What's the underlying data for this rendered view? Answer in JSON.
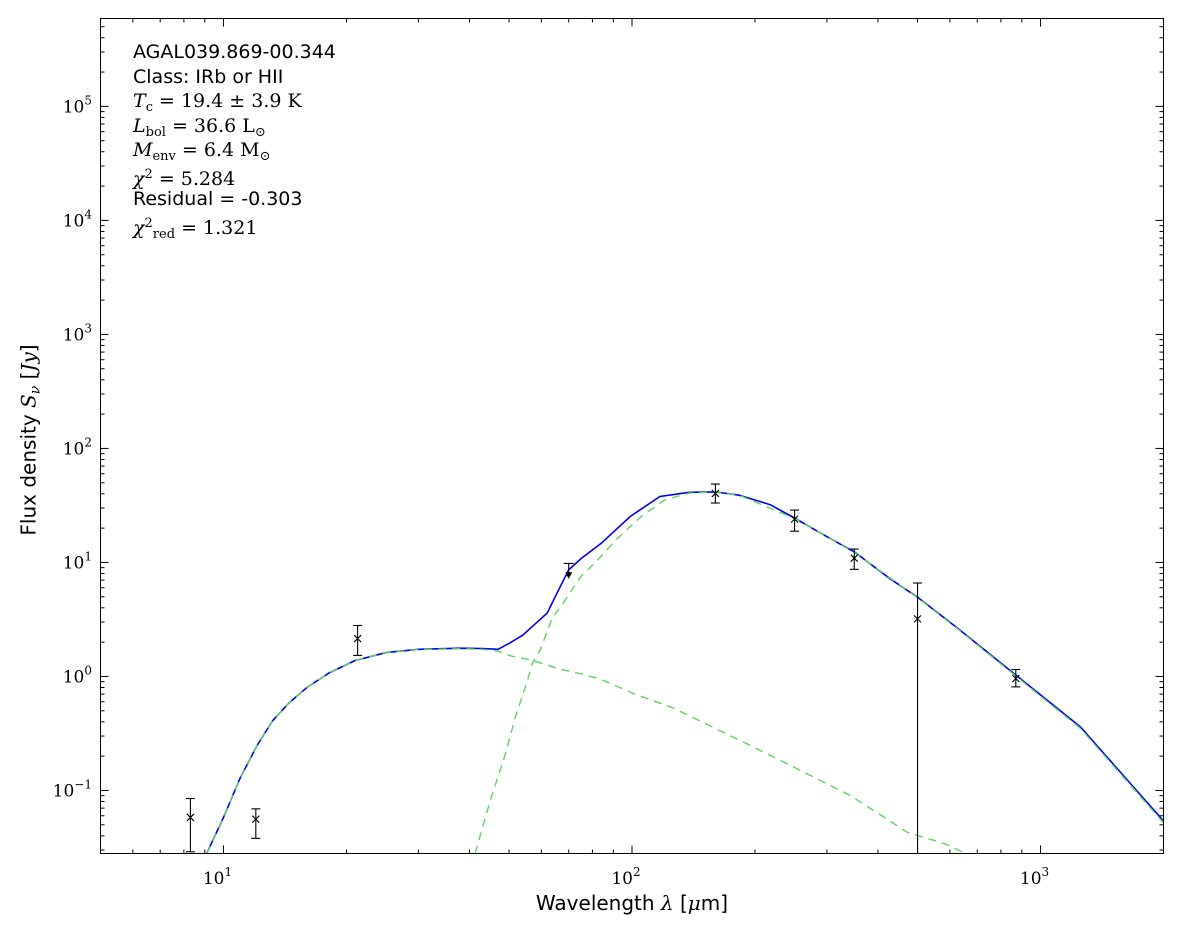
{
  "figure": {
    "background": "#ffffff",
    "frame_color": "#000000",
    "annotation": {
      "lines": [
        {
          "name": "source-name",
          "segments": [
            {
              "t": "AGAL039.869-00.344",
              "s": "plain"
            }
          ]
        },
        {
          "name": "source-class",
          "segments": [
            {
              "t": "Class: IRb or HII",
              "s": "plain"
            }
          ]
        },
        {
          "name": "temperature",
          "segments": [
            {
              "t": "T",
              "s": "it"
            },
            {
              "t": "c",
              "s": "sub"
            },
            {
              "t": " = 19.4 ± 3.9 K",
              "s": "rm"
            }
          ]
        },
        {
          "name": "luminosity",
          "segments": [
            {
              "t": "L",
              "s": "it"
            },
            {
              "t": "bol",
              "s": "sub"
            },
            {
              "t": " = 36.6 L",
              "s": "rm"
            },
            {
              "t": "⊙",
              "s": "sub"
            }
          ]
        },
        {
          "name": "envelope-mass",
          "segments": [
            {
              "t": "M",
              "s": "it"
            },
            {
              "t": "env",
              "s": "sub"
            },
            {
              "t": " = 6.4 M",
              "s": "rm"
            },
            {
              "t": "⊙",
              "s": "sub"
            }
          ]
        },
        {
          "name": "chi-square",
          "segments": [
            {
              "t": "χ",
              "s": "it"
            },
            {
              "t": "2",
              "s": "sup"
            },
            {
              "t": " = 5.284",
              "s": "rm"
            }
          ]
        },
        {
          "name": "residual",
          "segments": [
            {
              "t": "Residual = -0.303",
              "s": "plain"
            }
          ]
        },
        {
          "name": "chi-square-reduced",
          "segments": [
            {
              "t": "χ",
              "s": "it"
            },
            {
              "t": "2",
              "s": "sup"
            },
            {
              "t": "red",
              "s": "sub"
            },
            {
              "t": " = 1.321",
              "s": "rm"
            }
          ]
        }
      ]
    },
    "x_axis": {
      "label_segments": [
        {
          "t": "Wavelength ",
          "s": "plain"
        },
        {
          "t": "λ",
          "s": "it"
        },
        {
          "t": " [",
          "s": "plain"
        },
        {
          "t": "μ",
          "s": "it"
        },
        {
          "t": "m]",
          "s": "plain"
        }
      ],
      "tick_base": "10",
      "ticks": [
        {
          "v": 10,
          "exp": "1"
        },
        {
          "v": 100,
          "exp": "2"
        },
        {
          "v": 1000,
          "exp": "3"
        }
      ]
    },
    "y_axis": {
      "label_segments": [
        {
          "t": "Flux density ",
          "s": "plain"
        },
        {
          "t": "S",
          "s": "it"
        },
        {
          "t": "ν",
          "s": "subit"
        },
        {
          "t": " [",
          "s": "plain"
        },
        {
          "t": "Jy",
          "s": "it"
        },
        {
          "t": "]",
          "s": "plain"
        }
      ],
      "tick_base": "10",
      "ticks": [
        {
          "v": 0.1,
          "exp": "−1"
        },
        {
          "v": 1,
          "exp": "0"
        },
        {
          "v": 10,
          "exp": "1"
        },
        {
          "v": 100,
          "exp": "2"
        },
        {
          "v": 1000,
          "exp": "3"
        },
        {
          "v": 10000,
          "exp": "4"
        },
        {
          "v": 100000,
          "exp": "5"
        }
      ]
    }
  },
  "chart_data": {
    "type": "line",
    "title": "",
    "xlabel": "Wavelength λ [μm]",
    "ylabel": "Flux density Sν [Jy]",
    "xscale": "log",
    "yscale": "log",
    "xlim": [
      5,
      2000
    ],
    "ylim": [
      0.028,
      590000
    ],
    "grid": false,
    "legend": "none",
    "colors": {
      "model": "#0000ee",
      "components": "#5fd35f",
      "data": "#000000"
    },
    "series": [
      {
        "name": "total_model",
        "style": "solid",
        "color": "#0000ee",
        "width": 1.6,
        "points": [
          [
            9.1,
            0.028
          ],
          [
            10,
            0.058
          ],
          [
            11,
            0.13
          ],
          [
            12.1,
            0.25
          ],
          [
            13.2,
            0.41
          ],
          [
            14.5,
            0.59
          ],
          [
            16,
            0.8
          ],
          [
            18.2,
            1.08
          ],
          [
            21,
            1.38
          ],
          [
            25,
            1.62
          ],
          [
            30,
            1.73
          ],
          [
            38,
            1.77
          ],
          [
            43,
            1.76
          ],
          [
            47,
            1.73
          ],
          [
            50,
            1.95
          ],
          [
            54,
            2.3
          ],
          [
            58,
            2.9
          ],
          [
            62,
            3.6
          ],
          [
            67,
            6.3
          ],
          [
            70,
            8.6
          ],
          [
            75,
            10.8
          ],
          [
            84,
            14.7
          ],
          [
            99,
            25.3
          ],
          [
            117,
            37.9
          ],
          [
            138,
            41.2
          ],
          [
            160,
            41.6
          ],
          [
            183,
            38.9
          ],
          [
            218,
            32.1
          ],
          [
            251,
            24.3
          ],
          [
            296,
            17.3
          ],
          [
            352,
            12.2
          ],
          [
            428,
            7.2
          ],
          [
            502,
            4.9
          ],
          [
            634,
            2.56
          ],
          [
            879,
            1.0
          ],
          [
            1253,
            0.36
          ],
          [
            2000,
            0.054
          ]
        ]
      },
      {
        "name": "warm_component",
        "style": "dashed",
        "color": "#5fd35f",
        "width": 1.4,
        "points": [
          [
            9.1,
            0.028
          ],
          [
            10,
            0.058
          ],
          [
            11,
            0.13
          ],
          [
            12.1,
            0.25
          ],
          [
            13.2,
            0.41
          ],
          [
            14.5,
            0.59
          ],
          [
            16,
            0.8
          ],
          [
            18.2,
            1.08
          ],
          [
            21,
            1.38
          ],
          [
            25,
            1.62
          ],
          [
            30,
            1.72
          ],
          [
            38,
            1.75
          ],
          [
            43,
            1.73
          ],
          [
            47,
            1.67
          ],
          [
            49,
            1.57
          ],
          [
            50.6,
            1.51
          ],
          [
            56.8,
            1.39
          ],
          [
            66.5,
            1.16
          ],
          [
            75.3,
            1.05
          ],
          [
            83.5,
            0.95
          ],
          [
            100.7,
            0.71
          ],
          [
            126,
            0.53
          ],
          [
            195,
            0.248
          ],
          [
            343,
            0.09
          ],
          [
            472,
            0.043
          ],
          [
            585,
            0.034
          ],
          [
            655,
            0.028
          ]
        ]
      },
      {
        "name": "cold_component",
        "style": "dashed",
        "color": "#5fd35f",
        "width": 1.4,
        "points": [
          [
            41.3,
            0.028
          ],
          [
            45,
            0.082
          ],
          [
            49,
            0.209
          ],
          [
            51.8,
            0.44
          ],
          [
            53.8,
            0.66
          ],
          [
            55.7,
            0.97
          ],
          [
            57,
            1.31
          ],
          [
            59.6,
            1.71
          ],
          [
            63.8,
            3.26
          ],
          [
            67.9,
            4.4
          ],
          [
            74.8,
            7.45
          ],
          [
            82.4,
            10.5
          ],
          [
            91.2,
            15.7
          ],
          [
            105,
            25.1
          ],
          [
            120,
            35.2
          ],
          [
            138,
            40.6
          ],
          [
            160,
            41.5
          ],
          [
            183,
            38.8
          ],
          [
            251,
            24.2
          ],
          [
            352,
            12.1
          ],
          [
            502,
            4.85
          ],
          [
            634,
            2.53
          ],
          [
            879,
            0.98
          ],
          [
            1253,
            0.35
          ],
          [
            2000,
            0.052
          ]
        ]
      }
    ],
    "observations": [
      {
        "lambda": 8.3,
        "flux": 0.058,
        "flux_hi": 0.085,
        "flux_lo": 0.029
      },
      {
        "lambda": 12.0,
        "flux": 0.056,
        "flux_hi": 0.069,
        "flux_lo": 0.038
      },
      {
        "lambda": 21.3,
        "flux": 2.15,
        "flux_hi": 2.8,
        "flux_lo": 1.53
      },
      {
        "lambda": 70,
        "flux": 9.8,
        "upper_limit": true
      },
      {
        "lambda": 160,
        "flux": 40.3,
        "flux_hi": 48.7,
        "flux_lo": 33.2
      },
      {
        "lambda": 250,
        "flux": 24.0,
        "flux_hi": 28.8,
        "flux_lo": 18.8
      },
      {
        "lambda": 350,
        "flux": 10.9,
        "flux_hi": 13.1,
        "flux_lo": 8.7
      },
      {
        "lambda": 500,
        "flux": 3.2,
        "flux_hi": 6.6,
        "flux_lo": 0.028,
        "lo_clipped": true
      },
      {
        "lambda": 870,
        "flux": 0.96,
        "flux_hi": 1.15,
        "flux_lo": 0.81
      }
    ]
  }
}
